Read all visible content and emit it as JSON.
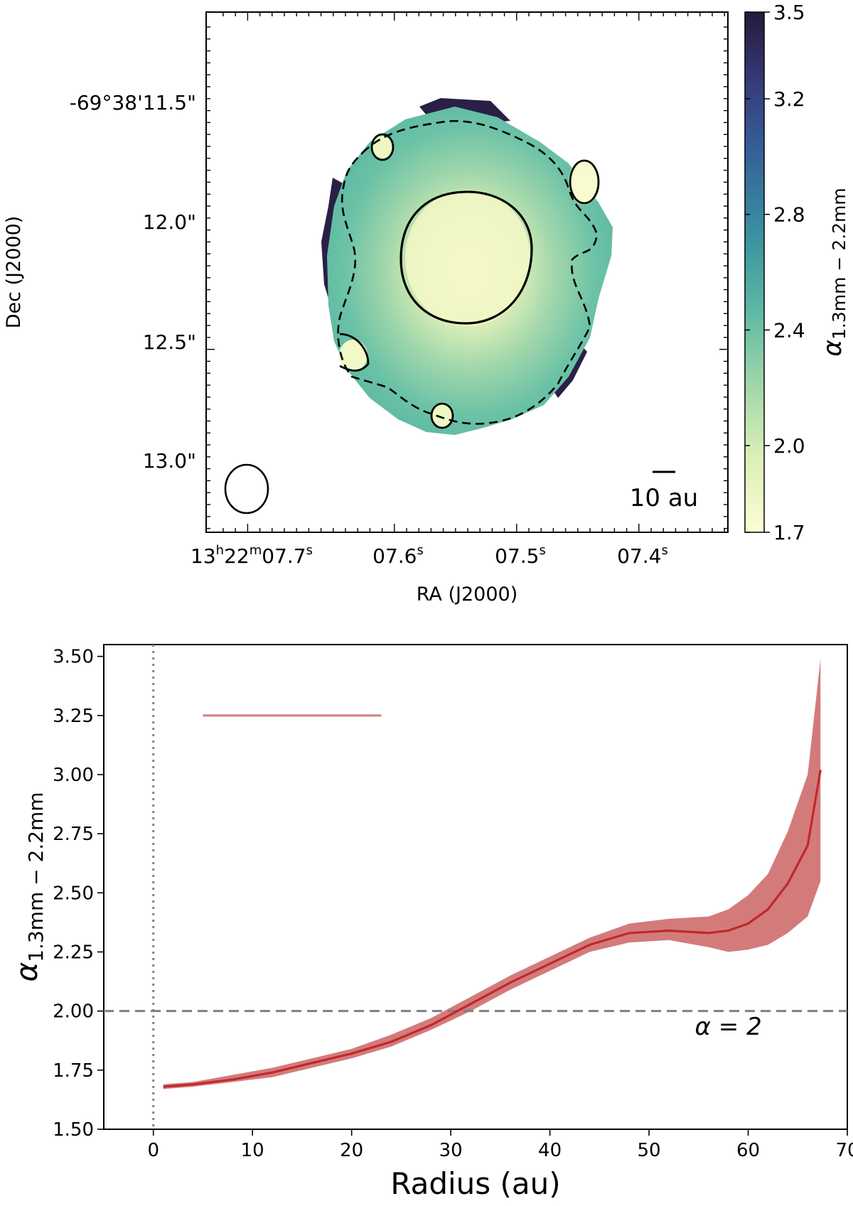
{
  "chart_data": [
    {
      "type": "heatmap",
      "xlabel": "RA (J2000)",
      "ylabel": "Dec (J2000)",
      "x_ticks": [
        {
          "main": "13",
          "sup1": "h",
          "mid": "22",
          "sup2": "m",
          "tail": "07.7",
          "sup3": "s"
        },
        {
          "main": "07.6",
          "sup1": "s"
        },
        {
          "main": "07.5",
          "sup1": "s"
        },
        {
          "main": "07.4",
          "sup1": "s"
        }
      ],
      "y_ticks": [
        "-69°38'11.5\"",
        "12.0\"",
        "12.5\"",
        "13.0\""
      ],
      "colorbar": {
        "label_main": "α",
        "label_sub": "1.3mm − 2.2mm",
        "range": [
          1.7,
          3.5
        ],
        "ticks": [
          "3.5",
          "3.2",
          "2.8",
          "2.4",
          "2.0",
          "1.7"
        ],
        "colors": [
          "#fcfdd4",
          "#dcefb7",
          "#9fd6ab",
          "#5cb8a3",
          "#3a91a0",
          "#35669b",
          "#363d7e",
          "#261a3a"
        ]
      },
      "scale_bar_label": "10 au",
      "contours": [
        {
          "level": 2.0,
          "style": "solid"
        },
        {
          "level": 2.4,
          "style": "dashed"
        }
      ]
    },
    {
      "type": "area",
      "xlabel": "Radius (au)",
      "ylabel_main": "α",
      "ylabel_sub": "1.3mm − 2.2mm",
      "xlim": [
        -5,
        70
      ],
      "ylim": [
        1.5,
        3.55
      ],
      "x_ticks": [
        0,
        10,
        20,
        30,
        40,
        50,
        60,
        70
      ],
      "y_ticks": [
        1.5,
        1.75,
        2.0,
        2.25,
        2.5,
        2.75,
        3.0,
        3.25,
        3.5
      ],
      "reference_line": {
        "y": 2.0,
        "label": "α = 2"
      },
      "vertical_line": {
        "x": 0
      },
      "beam_bar": {
        "x": [
          5,
          23
        ],
        "y": 3.25
      },
      "series": [
        {
          "color": "#c0282d",
          "band_color": "#d17474",
          "x": [
            1,
            4,
            8,
            12,
            16,
            20,
            24,
            28,
            32,
            36,
            40,
            44,
            48,
            52,
            56,
            58,
            60,
            62,
            64,
            66,
            67.3
          ],
          "y": [
            1.68,
            1.69,
            1.71,
            1.74,
            1.78,
            1.82,
            1.87,
            1.94,
            2.03,
            2.12,
            2.2,
            2.28,
            2.33,
            2.34,
            2.33,
            2.34,
            2.37,
            2.43,
            2.54,
            2.7,
            3.02
          ],
          "y_lower": [
            1.67,
            1.68,
            1.7,
            1.72,
            1.76,
            1.8,
            1.85,
            1.92,
            2.0,
            2.09,
            2.17,
            2.25,
            2.29,
            2.3,
            2.27,
            2.25,
            2.26,
            2.28,
            2.33,
            2.4,
            2.55
          ],
          "y_upper": [
            1.69,
            1.7,
            1.73,
            1.76,
            1.8,
            1.84,
            1.9,
            1.97,
            2.06,
            2.15,
            2.23,
            2.31,
            2.37,
            2.39,
            2.4,
            2.43,
            2.49,
            2.58,
            2.76,
            3.0,
            3.49
          ]
        }
      ]
    }
  ]
}
